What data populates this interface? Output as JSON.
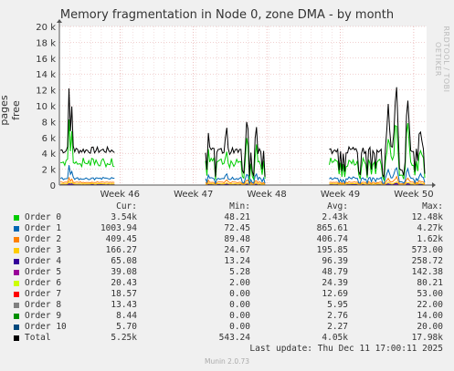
{
  "chart_data": {
    "type": "line",
    "title": "Memory fragmentation in Node 0, zone DMA - by month",
    "ylabel": "pages free",
    "ylim": [
      0,
      20000
    ],
    "y_ticks": [
      "0",
      "2 k",
      "4 k",
      "6 k",
      "8 k",
      "10 k",
      "12 k",
      "14 k",
      "16 k",
      "18 k",
      "20 k"
    ],
    "x_ticks": [
      "Week 46",
      "Week 47",
      "Week 48",
      "Week 49",
      "Week 50"
    ],
    "grid": true,
    "series_color_hint": "stacked-style line series per order",
    "series": [
      {
        "name": "Order 0",
        "color": "#00cc00",
        "cur": "3.54k",
        "min": "48.21",
        "avg": "2.43k",
        "max": "12.48k"
      },
      {
        "name": "Order 1",
        "color": "#0066b3",
        "cur": "1003.94",
        "min": "72.45",
        "avg": "865.61",
        "max": "4.27k"
      },
      {
        "name": "Order 2",
        "color": "#ff8000",
        "cur": "409.45",
        "min": "89.48",
        "avg": "406.74",
        "max": "1.62k"
      },
      {
        "name": "Order 3",
        "color": "#ffcc00",
        "cur": "166.27",
        "min": "24.67",
        "avg": "195.85",
        "max": "573.00"
      },
      {
        "name": "Order 4",
        "color": "#330099",
        "cur": "65.08",
        "min": "13.24",
        "avg": "96.39",
        "max": "258.72"
      },
      {
        "name": "Order 5",
        "color": "#990099",
        "cur": "39.08",
        "min": "5.28",
        "avg": "48.79",
        "max": "142.38"
      },
      {
        "name": "Order 6",
        "color": "#ccff00",
        "cur": "20.43",
        "min": "2.00",
        "avg": "24.39",
        "max": "80.21"
      },
      {
        "name": "Order 7",
        "color": "#ff0000",
        "cur": "18.57",
        "min": "0.00",
        "avg": "12.69",
        "max": "53.00"
      },
      {
        "name": "Order 8",
        "color": "#808080",
        "cur": "13.43",
        "min": "0.00",
        "avg": "5.95",
        "max": "22.00"
      },
      {
        "name": "Order 9",
        "color": "#008f00",
        "cur": "8.44",
        "min": "0.00",
        "avg": "2.76",
        "max": "14.00"
      },
      {
        "name": "Order 10",
        "color": "#00487d",
        "cur": "5.70",
        "min": "0.00",
        "avg": "2.27",
        "max": "20.00"
      },
      {
        "name": "Total",
        "color": "#000000",
        "cur": "5.25k",
        "min": "543.24",
        "avg": "4.05k",
        "max": "17.98k"
      }
    ],
    "data_segments": [
      {
        "x_range": [
          "Week 45.7",
          "Week 46.0"
        ],
        "total_approx": [
          4200,
          4400,
          13000,
          12500,
          4800,
          4500,
          5000,
          5200
        ]
      },
      {
        "x_range": [
          "Week 47.2",
          "Week 47.9"
        ],
        "total_approx": [
          7200,
          5000,
          9500,
          6000,
          8000,
          10200,
          4600
        ]
      },
      {
        "x_range": [
          "Week 48.5",
          "Week 49.9"
        ],
        "total_approx": [
          2000,
          3900,
          5200,
          4000,
          11000,
          3800,
          14300,
          4500,
          12000,
          7000
        ]
      }
    ]
  },
  "legend_header": {
    "cur": "Cur:",
    "min": "Min:",
    "avg": "Avg:",
    "max": "Max:"
  },
  "footer": {
    "last_update": "Last update: Thu Dec 11 17:00:11 2025",
    "version": "Munin 2.0.73",
    "side_label": "RRDTOOL / TOBI OETIKER"
  }
}
